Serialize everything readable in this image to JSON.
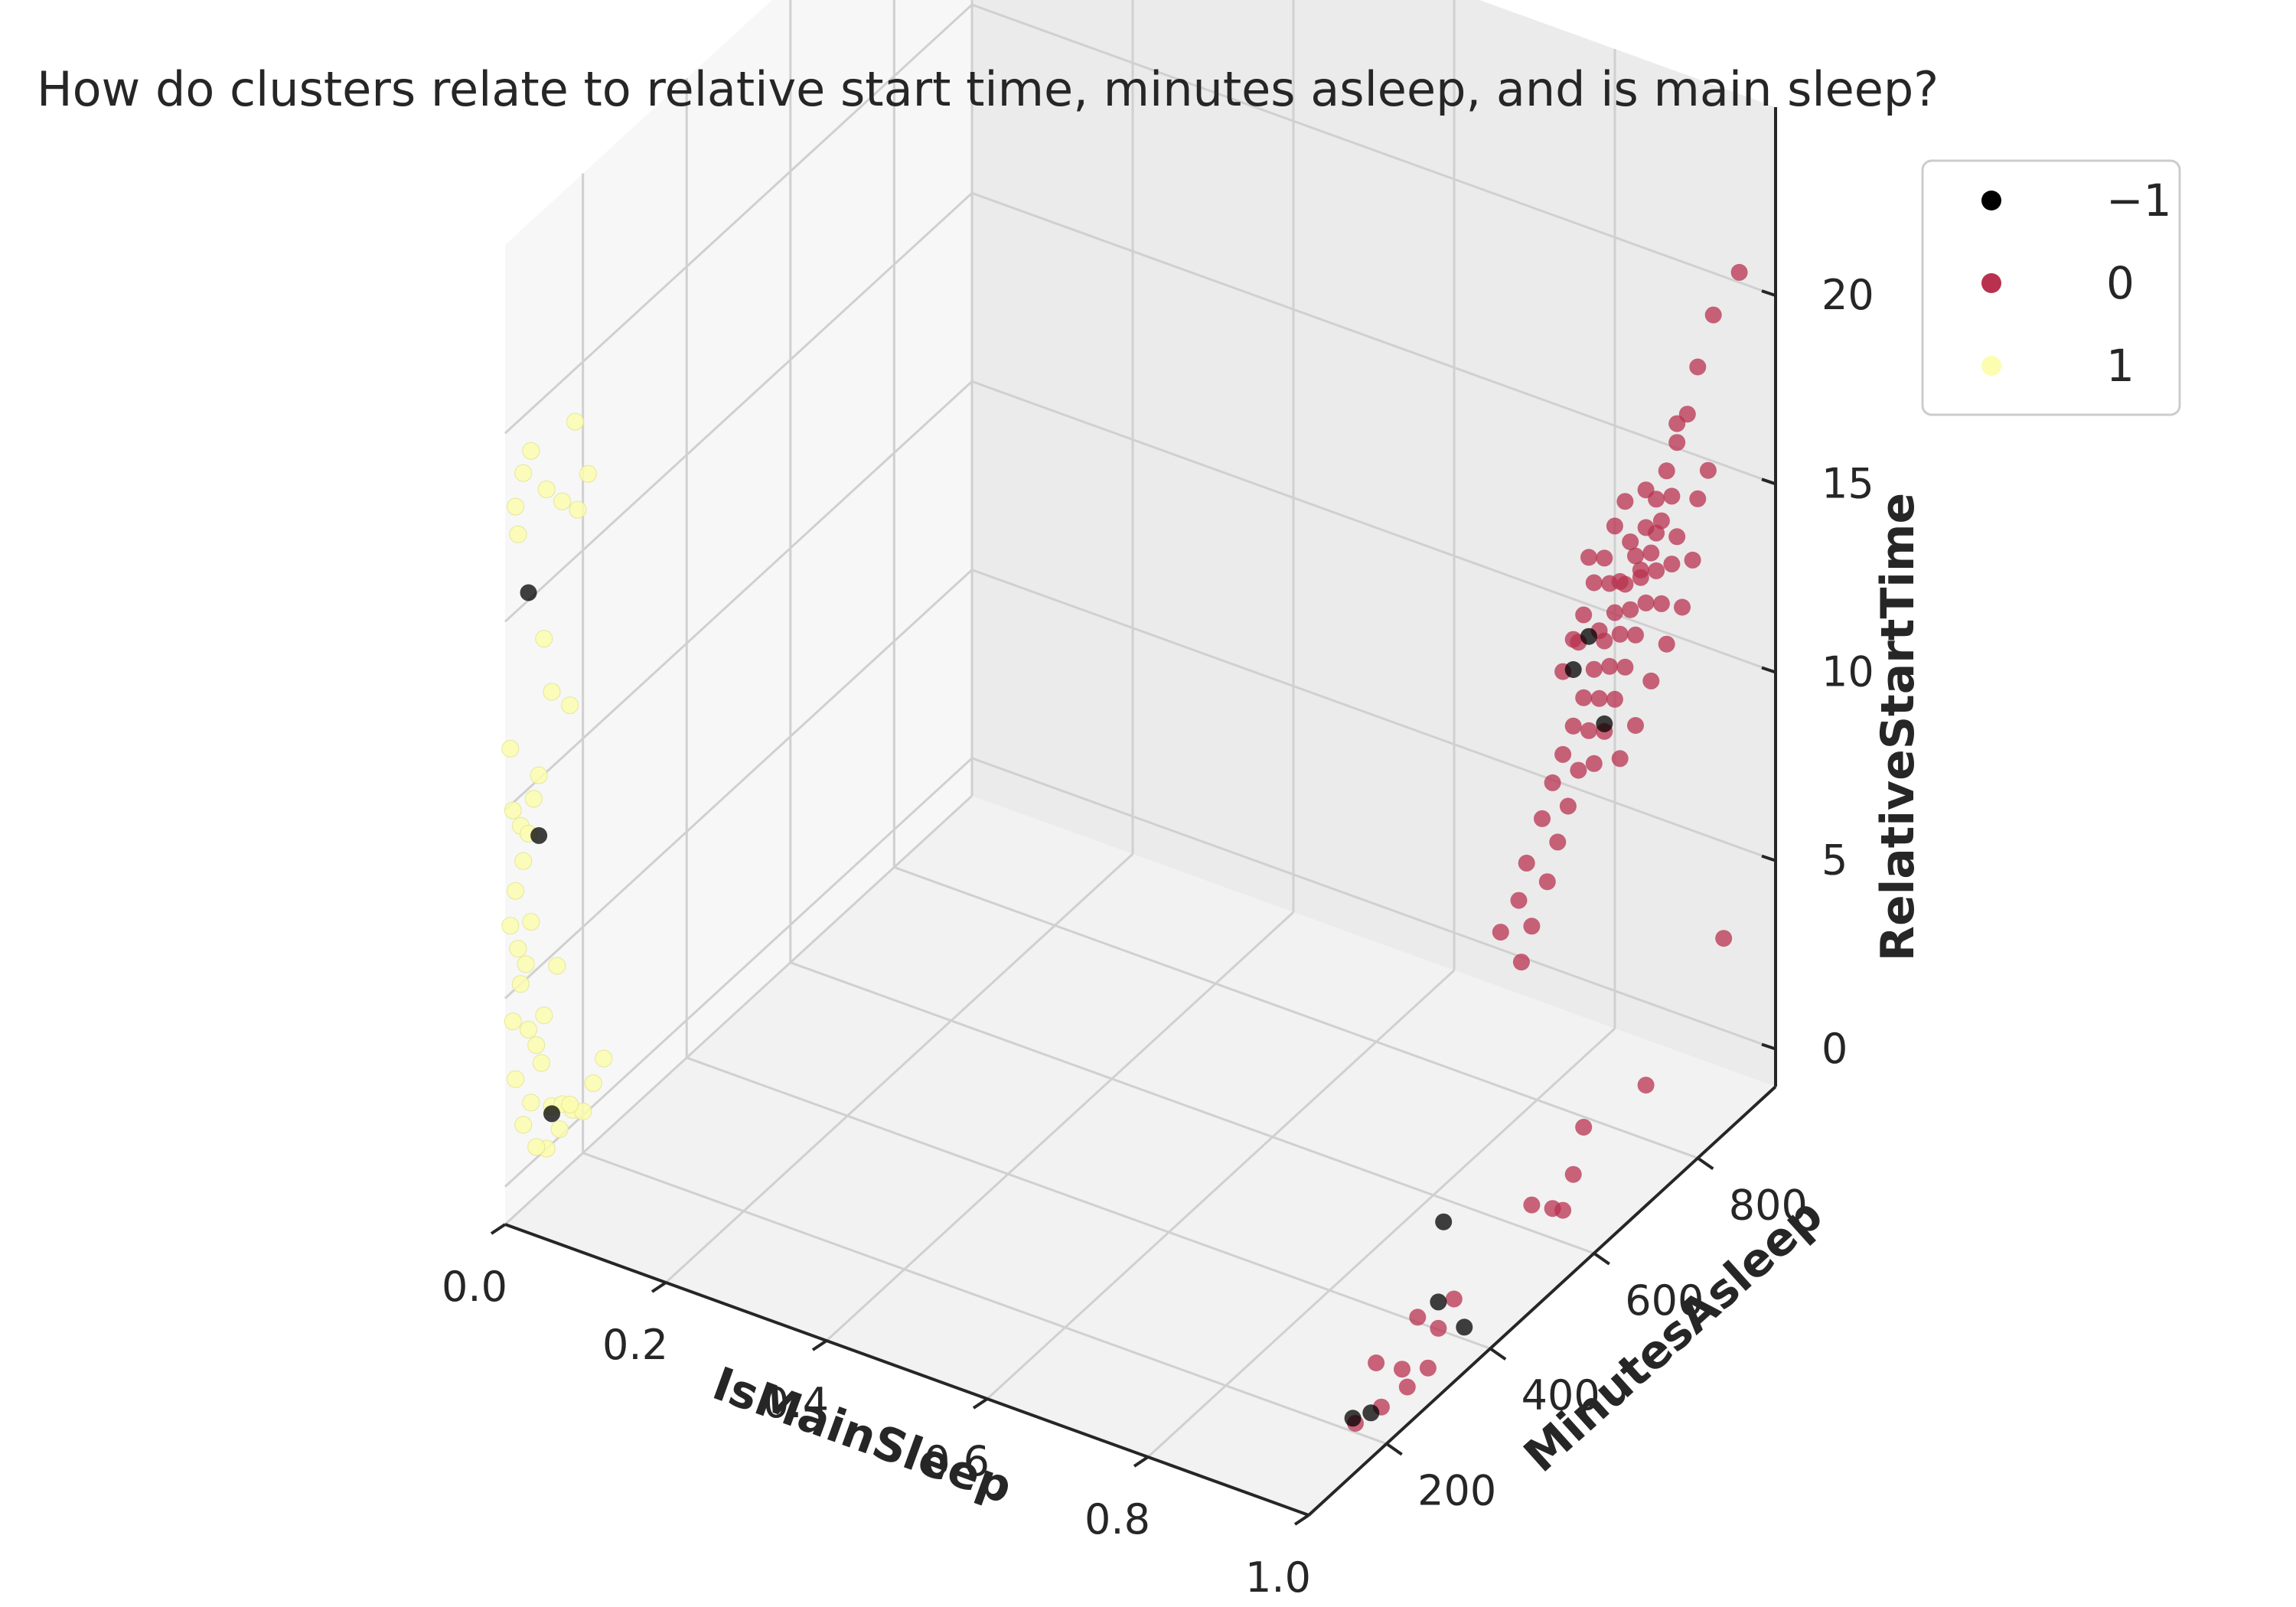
{
  "chart_data": {
    "type": "scatter",
    "projection": "3d",
    "title": "How do clusters relate to relative start time, minutes asleep, and is main sleep?",
    "xlabel": "IsMainSleep",
    "ylabel": "MinutesAsleep",
    "zlabel": "RelativeStartTime",
    "xlim": [
      0,
      1
    ],
    "ylim": [
      50,
      950
    ],
    "zlim": [
      -1,
      25
    ],
    "xticks": [
      "0.0",
      "0.2",
      "0.4",
      "0.6",
      "0.8",
      "1.0"
    ],
    "yticks": [
      "200",
      "400",
      "600",
      "800"
    ],
    "zticks": [
      "0",
      "5",
      "10",
      "15",
      "20"
    ],
    "grid": true,
    "legend_position": "top-right",
    "legend": [
      {
        "label": "−1",
        "color": "#000000"
      },
      {
        "label": "0",
        "color": "#b8324f"
      },
      {
        "label": "1",
        "color": "#fcfdae"
      }
    ],
    "series": [
      {
        "name": "−1",
        "color": "#000000",
        "points": [
          [
            0,
            140,
            0.8
          ],
          [
            0,
            95,
            15.2
          ],
          [
            0,
            115,
            8.5
          ],
          [
            1,
            560,
            15.0
          ],
          [
            1,
            590,
            15.5
          ],
          [
            1,
            620,
            12.8
          ],
          [
            1,
            310,
            3.5
          ],
          [
            1,
            300,
            1.5
          ],
          [
            1,
            135,
            0.5
          ],
          [
            1,
            170,
            0.2
          ],
          [
            1,
            350,
            0.2
          ]
        ]
      },
      {
        "name": "0",
        "color": "#b8324f",
        "points": [
          [
            1,
            420,
            9.8
          ],
          [
            1,
            455,
            10.2
          ],
          [
            1,
            470,
            11.0
          ],
          [
            1,
            500,
            11.8
          ],
          [
            1,
            520,
            12.5
          ],
          [
            1,
            540,
            13.0
          ],
          [
            1,
            560,
            13.5
          ],
          [
            1,
            580,
            14.0
          ],
          [
            1,
            600,
            14.5
          ],
          [
            1,
            620,
            15.0
          ],
          [
            1,
            640,
            15.5
          ],
          [
            1,
            660,
            16.0
          ],
          [
            1,
            680,
            16.5
          ],
          [
            1,
            700,
            17.0
          ],
          [
            1,
            720,
            17.5
          ],
          [
            1,
            740,
            18.0
          ],
          [
            1,
            760,
            18.5
          ],
          [
            1,
            780,
            19.0
          ],
          [
            1,
            800,
            20.0
          ],
          [
            1,
            830,
            21.0
          ],
          [
            1,
            880,
            21.5
          ],
          [
            1,
            460,
            8.5
          ],
          [
            1,
            480,
            9.2
          ],
          [
            1,
            510,
            10.0
          ],
          [
            1,
            530,
            10.8
          ],
          [
            1,
            550,
            11.5
          ],
          [
            1,
            570,
            12.2
          ],
          [
            1,
            590,
            13.0
          ],
          [
            1,
            610,
            13.6
          ],
          [
            1,
            630,
            14.2
          ],
          [
            1,
            650,
            14.8
          ],
          [
            1,
            670,
            15.2
          ],
          [
            1,
            690,
            15.8
          ],
          [
            1,
            710,
            16.2
          ],
          [
            1,
            730,
            16.8
          ],
          [
            1,
            750,
            17.2
          ],
          [
            1,
            540,
            15.2
          ],
          [
            1,
            560,
            15.8
          ],
          [
            1,
            580,
            16.2
          ],
          [
            1,
            600,
            16.8
          ],
          [
            1,
            620,
            17.2
          ],
          [
            1,
            640,
            17.8
          ],
          [
            1,
            660,
            18.2
          ],
          [
            1,
            600,
            12.0
          ],
          [
            1,
            620,
            12.6
          ],
          [
            1,
            640,
            13.2
          ],
          [
            1,
            660,
            13.8
          ],
          [
            1,
            680,
            14.4
          ],
          [
            1,
            700,
            15.0
          ],
          [
            1,
            720,
            15.6
          ],
          [
            1,
            650,
            11.5
          ],
          [
            1,
            680,
            12.0
          ],
          [
            1,
            710,
            12.8
          ],
          [
            1,
            740,
            13.4
          ],
          [
            1,
            770,
            14.0
          ],
          [
            1,
            790,
            15.0
          ],
          [
            1,
            760,
            16.0
          ],
          [
            1,
            720,
            16.6
          ],
          [
            1,
            700,
            18.0
          ],
          [
            1,
            760,
            19.0
          ],
          [
            1,
            590,
            17.6
          ],
          [
            1,
            570,
            15.6
          ],
          [
            1,
            610,
            15.4
          ],
          [
            1,
            630,
            16.4
          ],
          [
            1,
            650,
            16.2
          ],
          [
            1,
            670,
            17.0
          ],
          [
            1,
            690,
            16.0
          ],
          [
            1,
            730,
            14.6
          ],
          [
            1,
            750,
            15.4
          ],
          [
            1,
            800,
            16.5
          ],
          [
            1,
            820,
            17.0
          ],
          [
            1,
            850,
            4.2
          ],
          [
            1,
            700,
            2.2
          ],
          [
            1,
            140,
            0.3
          ],
          [
            1,
            180,
            1.4
          ],
          [
            1,
            230,
            0.6
          ],
          [
            1,
            260,
            1.6
          ],
          [
            1,
            300,
            0.8
          ],
          [
            1,
            330,
            1.2
          ],
          [
            1,
            190,
            0.1
          ],
          [
            1,
            240,
            0.0
          ],
          [
            1,
            280,
            0.0
          ],
          [
            1,
            480,
            1.8
          ],
          [
            1,
            520,
            1.2
          ],
          [
            1,
            540,
            0.9
          ],
          [
            1,
            560,
            1.6
          ],
          [
            1,
            580,
            2.6
          ]
        ]
      },
      {
        "name": "1",
        "color": "#fcfdae",
        "points": [
          [
            0,
            70,
            17.8
          ],
          [
            0,
            85,
            18.5
          ],
          [
            0,
            100,
            18.9
          ],
          [
            0,
            75,
            17.0
          ],
          [
            0,
            130,
            17.5
          ],
          [
            0,
            160,
            16.8
          ],
          [
            0,
            185,
            18.6
          ],
          [
            0,
            190,
            16.2
          ],
          [
            0,
            210,
            16.9
          ],
          [
            0,
            125,
            13.6
          ],
          [
            0,
            60,
            11.5
          ],
          [
            0,
            140,
            12.0
          ],
          [
            0,
            175,
            11.2
          ],
          [
            0,
            65,
            9.8
          ],
          [
            0,
            80,
            9.2
          ],
          [
            0,
            95,
            8.8
          ],
          [
            0,
            105,
            9.6
          ],
          [
            0,
            115,
            10.1
          ],
          [
            0,
            85,
            8.2
          ],
          [
            0,
            70,
            7.6
          ],
          [
            0,
            60,
            6.8
          ],
          [
            0,
            75,
            6.0
          ],
          [
            0,
            90,
            5.4
          ],
          [
            0,
            100,
            6.4
          ],
          [
            0,
            80,
            5.0
          ],
          [
            0,
            65,
            4.2
          ],
          [
            0,
            95,
            3.6
          ],
          [
            0,
            110,
            3.0
          ],
          [
            0,
            125,
            3.6
          ],
          [
            0,
            150,
            4.6
          ],
          [
            0,
            70,
            2.6
          ],
          [
            0,
            100,
            1.6
          ],
          [
            0,
            120,
            2.4
          ],
          [
            0,
            85,
            1.2
          ],
          [
            0,
            140,
            1.0
          ],
          [
            0,
            160,
            0.8
          ],
          [
            0,
            180,
            0.4
          ],
          [
            0,
            200,
            0.1
          ],
          [
            0,
            220,
            0.6
          ],
          [
            0,
            240,
            1.0
          ],
          [
            0,
            130,
            0.0
          ],
          [
            0,
            155,
            0.2
          ],
          [
            0,
            175,
            0.6
          ],
          [
            0,
            110,
            0.3
          ]
        ]
      }
    ]
  }
}
